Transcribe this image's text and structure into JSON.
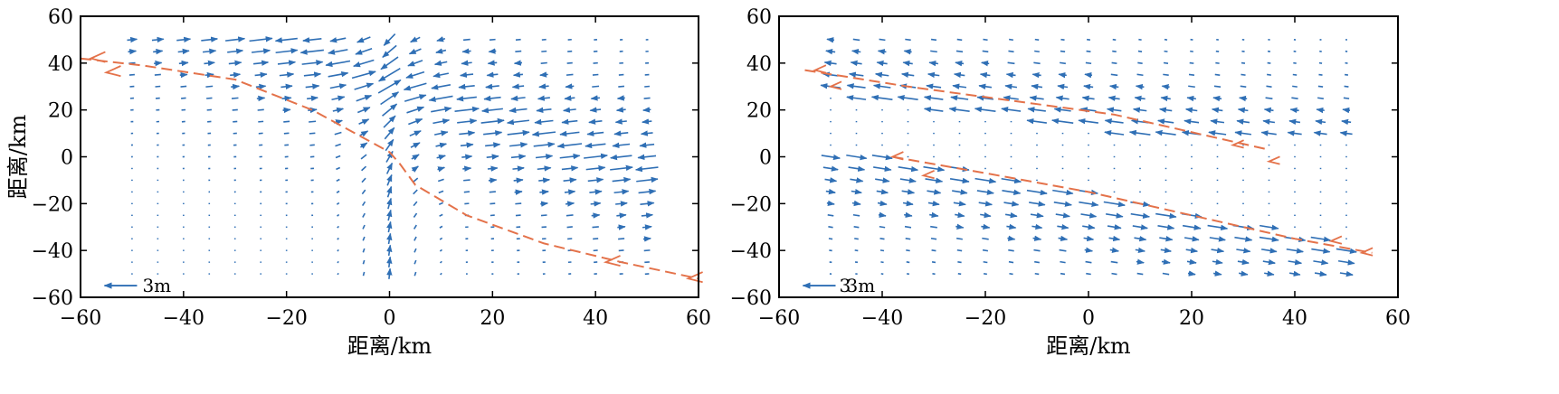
{
  "chart_data": [
    {
      "type": "quiver",
      "panel": "left",
      "xlabel": "距离/km",
      "ylabel": "距离/km",
      "xlim": [
        -60,
        60
      ],
      "ylim": [
        -60,
        60
      ],
      "xticks": [
        "−60",
        "−40",
        "−20",
        "0",
        "20",
        "40",
        "60"
      ],
      "yticks": [
        "60",
        "40",
        "20",
        "0",
        "−20",
        "−40",
        "−60"
      ],
      "scale_arrow": {
        "label": "3m",
        "x": -55,
        "y": -55,
        "length_m": 3
      },
      "vector_grid": {
        "x_from": -50,
        "x_to": 50,
        "y_from": -50,
        "y_to": 50,
        "step": 5
      },
      "fault_trace": [
        [
          -60,
          42
        ],
        [
          -48,
          39
        ],
        [
          -30,
          33
        ],
        [
          -15,
          20
        ],
        [
          -5,
          8
        ],
        [
          0,
          2
        ],
        [
          2,
          -3
        ],
        [
          5,
          -12
        ],
        [
          15,
          -25
        ],
        [
          30,
          -37
        ],
        [
          45,
          -45
        ],
        [
          60,
          -52
        ]
      ],
      "fault_ticks": [
        [
          -58,
          42,
          4
        ],
        [
          -55,
          36,
          4
        ],
        [
          42,
          -45,
          4
        ],
        [
          58,
          -52,
          4
        ]
      ]
    },
    {
      "type": "quiver",
      "panel": "right",
      "xlabel": "距离/km",
      "ylabel": "",
      "xlim": [
        -60,
        60
      ],
      "ylim": [
        -60,
        60
      ],
      "xticks": [
        "−60",
        "−40",
        "−20",
        "0",
        "20",
        "40",
        "60"
      ],
      "yticks": [
        "60",
        "40",
        "20",
        "0",
        "−20",
        "−40",
        "−60"
      ],
      "scale_arrow": {
        "label": "3m",
        "x": -55,
        "y": -55,
        "length_m": 3
      },
      "overlay_label": "3",
      "vector_grid": {
        "x_from": -50,
        "x_to": 50,
        "y_from": -50,
        "y_to": 50,
        "step": 5
      },
      "fault_traces": [
        [
          [
            -55,
            37
          ],
          [
            -35,
            30
          ],
          [
            -15,
            24
          ],
          [
            5,
            18
          ],
          [
            25,
            8
          ],
          [
            35,
            3
          ]
        ],
        [
          [
            -38,
            0
          ],
          [
            -20,
            -7
          ],
          [
            0,
            -15
          ],
          [
            20,
            -25
          ],
          [
            40,
            -35
          ],
          [
            55,
            -41
          ]
        ]
      ],
      "fault_ticks": [
        [
          -53,
          37,
          3
        ],
        [
          -50,
          30,
          3
        ],
        [
          28,
          5,
          3
        ],
        [
          35,
          -2,
          3
        ],
        [
          -38,
          0,
          3
        ],
        [
          -32,
          -8,
          3
        ],
        [
          47,
          -36,
          3
        ],
        [
          53,
          -41,
          3
        ]
      ]
    }
  ],
  "colors": {
    "vectors": "#2f6fb5",
    "fault": "#e4724a",
    "axes": "#000000"
  }
}
